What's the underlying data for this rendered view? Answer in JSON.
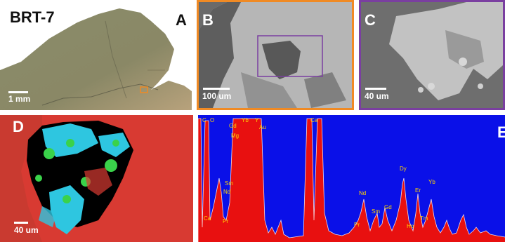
{
  "sample": "BRT-7",
  "panels": {
    "a": {
      "letter": "A",
      "scale": "1 mm"
    },
    "b": {
      "letter": "B",
      "scale": "100 um",
      "border": "#f08a24"
    },
    "c": {
      "letter": "C",
      "scale": "40 um",
      "border": "#7a3fa0"
    },
    "d": {
      "letter": "D",
      "scale": "40 um"
    },
    "e": {
      "letter": "E"
    }
  },
  "spectrum_labels": {
    "c": "C",
    "o": "O",
    "gd": "Gd",
    "yb1": "Yb",
    "y": "Y",
    "au": "Au",
    "mg": "Mg",
    "ca1": "Ca",
    "sm1": "Sm",
    "nd1": "Nd",
    "ca2": "Ca",
    "pr1": "Pr",
    "nd2": "Nd",
    "sm2": "Sm",
    "gd2": "Gd",
    "dy": "Dy",
    "er": "Er",
    "yb2": "Yb",
    "pr2": "Pr",
    "ho": "Ho",
    "tm": "Tm"
  },
  "colors": {
    "spectrum_bg": "#0a10e8",
    "spectrum_fill": "#e81010",
    "map_red": "#d83a32",
    "map_cyan": "#2ec6e0",
    "map_green": "#3ad24a",
    "label_yellow": "#ffd400"
  }
}
